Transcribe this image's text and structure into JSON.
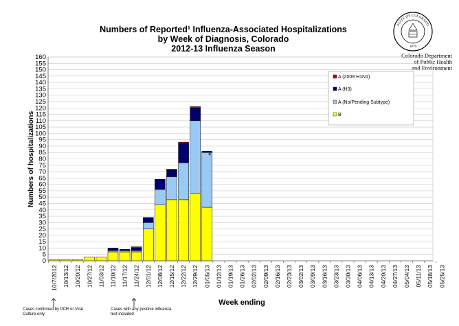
{
  "header": {
    "title_line1": "Numbers of Reported¹ Influenza-Associated Hospitalizations",
    "title_line2": "by Week of Diagnosis, Colorado",
    "title_line3": "2012-13 Influenza Season",
    "dept_line1": "Colorado Department",
    "dept_line2": "of Public Health",
    "dept_line3": "and Environment",
    "seal_text": "STATE OF COLORADO",
    "seal_year": "1876"
  },
  "notes": {
    "pcr_note": "Cases confirmed by PCR or Viral Culture only",
    "positive_note": "Cases with any positive influenza test included",
    "asterisk": "*"
  },
  "colors": {
    "h1n1": "#cc0000",
    "h3": "#00006e",
    "nopending": "#99c9f5",
    "b": "#ffff00",
    "grid": "#c8c8c8"
  },
  "chart_data": {
    "type": "bar",
    "stacked": true,
    "xlabel": "Week ending",
    "ylabel": "Numbers of hospitalizations",
    "ylim": [
      0,
      160
    ],
    "ytick_step": 5,
    "grid": true,
    "legend_position": "top-right",
    "categories": [
      "10/7/2012",
      "10/13/12",
      "10/20/12",
      "10/27/12",
      "11/03/12",
      "11/10/12",
      "11/17/12",
      "11/24/12",
      "12/01/12",
      "12/08/12",
      "12/15/12",
      "12/22/12",
      "12/29/12",
      "01/05/13",
      "01/12/13",
      "01/19/13",
      "01/26/13",
      "02/02/13",
      "02/09/13",
      "02/16/13",
      "02/23/13",
      "03/02/13",
      "03/09/13",
      "03/16/13",
      "03/23/13",
      "03/30/13",
      "04/06/13",
      "04/13/13",
      "04/20/13",
      "04/27/13",
      "05/04/13",
      "05/11/13",
      "05/18/13",
      "05/25/13"
    ],
    "series": [
      {
        "name": "A (2009 H1N1)",
        "color_key": "h1n1",
        "values": [
          0,
          0,
          0,
          0,
          0,
          0,
          0,
          1,
          0,
          0,
          1,
          1,
          1,
          0,
          0,
          0,
          0,
          0,
          0,
          0,
          0,
          0,
          0,
          0,
          0,
          0,
          0,
          0,
          0,
          0,
          0,
          0,
          0,
          0
        ]
      },
      {
        "name": "A (H3)",
        "color_key": "h3",
        "values": [
          0,
          0,
          0,
          0,
          0,
          2,
          1,
          2,
          4,
          8,
          5,
          15,
          10,
          1,
          0,
          0,
          0,
          0,
          0,
          0,
          0,
          0,
          0,
          0,
          0,
          0,
          0,
          0,
          0,
          0,
          0,
          0,
          0,
          0
        ]
      },
      {
        "name": "A (No/Pending Subtype)",
        "color_key": "nopending",
        "values": [
          0,
          0,
          0,
          0,
          0,
          1,
          1,
          1,
          5,
          12,
          18,
          29,
          57,
          43,
          0,
          0,
          0,
          0,
          0,
          0,
          0,
          0,
          0,
          0,
          0,
          0,
          0,
          0,
          0,
          0,
          0,
          0,
          0,
          0
        ]
      },
      {
        "name": "B",
        "color_key": "b",
        "values": [
          1,
          1,
          1,
          3,
          3,
          7,
          7,
          7,
          25,
          44,
          48,
          48,
          53,
          42,
          0,
          0,
          0,
          0,
          0,
          0,
          0,
          0,
          0,
          0,
          0,
          0,
          0,
          0,
          0,
          0,
          0,
          0,
          0,
          0
        ]
      }
    ],
    "legend_order": [
      "A (2009 H1N1)",
      "A (H3)",
      "A (No/Pending Subtype)",
      "B"
    ]
  }
}
